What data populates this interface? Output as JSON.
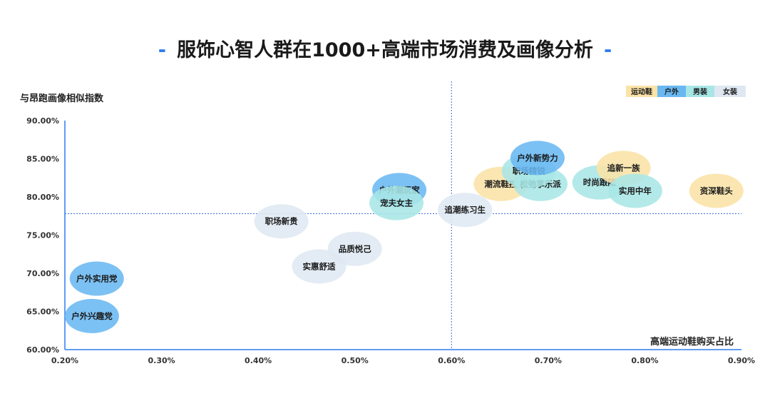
{
  "header": {
    "title": "服饰心智人群在1000+高端市场消费及画像分析",
    "dash": "-"
  },
  "chart_data": {
    "type": "scatter",
    "title": "服饰心智人群在1000+高端市场消费及画像分析",
    "xlabel": "高端运动鞋购买占比",
    "ylabel": "与昂跑画像相似指数",
    "xlim": [
      0.2,
      0.9
    ],
    "ylim": [
      60,
      90
    ],
    "xticks": [
      "0.20%",
      "0.30%",
      "0.40%",
      "0.50%",
      "0.60%",
      "0.70%",
      "0.80%",
      "0.90%"
    ],
    "xtick_values": [
      0.2,
      0.3,
      0.4,
      0.5,
      0.6,
      0.7,
      0.8,
      0.9
    ],
    "yticks": [
      "60.00%",
      "65.00%",
      "70.00%",
      "75.00%",
      "80.00%",
      "85.00%",
      "90.00%"
    ],
    "ytick_values": [
      60,
      65,
      70,
      75,
      80,
      85,
      90
    ],
    "reference_lines": {
      "x": 0.6,
      "y": 77.8
    },
    "legend_position": "top-right",
    "series": [
      {
        "name": "运动鞋",
        "color": "#fbe3a6"
      },
      {
        "name": "户外",
        "color": "#6ab8f2"
      },
      {
        "name": "男装",
        "color": "#a8e6e6"
      },
      {
        "name": "女装",
        "color": "#dfe8f2"
      }
    ],
    "points": [
      {
        "label": "户外实用党",
        "x": 0.233,
        "y": 69.3,
        "series": "户外"
      },
      {
        "label": "户外兴趣党",
        "x": 0.228,
        "y": 64.4,
        "series": "户外"
      },
      {
        "label": "职场新贵",
        "x": 0.424,
        "y": 76.8,
        "series": "女装"
      },
      {
        "label": "实惠舒适",
        "x": 0.463,
        "y": 70.9,
        "series": "女装"
      },
      {
        "label": "品质悦己",
        "x": 0.5,
        "y": 73.2,
        "series": "女装"
      },
      {
        "label": "户外潮玩家",
        "x": 0.546,
        "y": 80.9,
        "series": "户外"
      },
      {
        "label": "宠夫女主",
        "x": 0.543,
        "y": 79.2,
        "series": "男装"
      },
      {
        "label": "追潮练习生",
        "x": 0.614,
        "y": 78.3,
        "series": "女装"
      },
      {
        "label": "潮流鞋控",
        "x": 0.651,
        "y": 81.7,
        "series": "运动鞋"
      },
      {
        "label": "松弛享乐派",
        "x": 0.692,
        "y": 81.7,
        "series": "男装"
      },
      {
        "label": "职场精锐",
        "x": 0.68,
        "y": 83.4,
        "series": "男装"
      },
      {
        "label": "户外新势力",
        "x": 0.689,
        "y": 85.1,
        "series": "户外"
      },
      {
        "label": "时尚跟随",
        "x": 0.753,
        "y": 81.9,
        "series": "男装"
      },
      {
        "label": "追新一族",
        "x": 0.778,
        "y": 83.8,
        "series": "运动鞋"
      },
      {
        "label": "实用中年",
        "x": 0.79,
        "y": 80.8,
        "series": "男装"
      },
      {
        "label": "资深鞋头",
        "x": 0.874,
        "y": 80.8,
        "series": "运动鞋"
      }
    ]
  }
}
